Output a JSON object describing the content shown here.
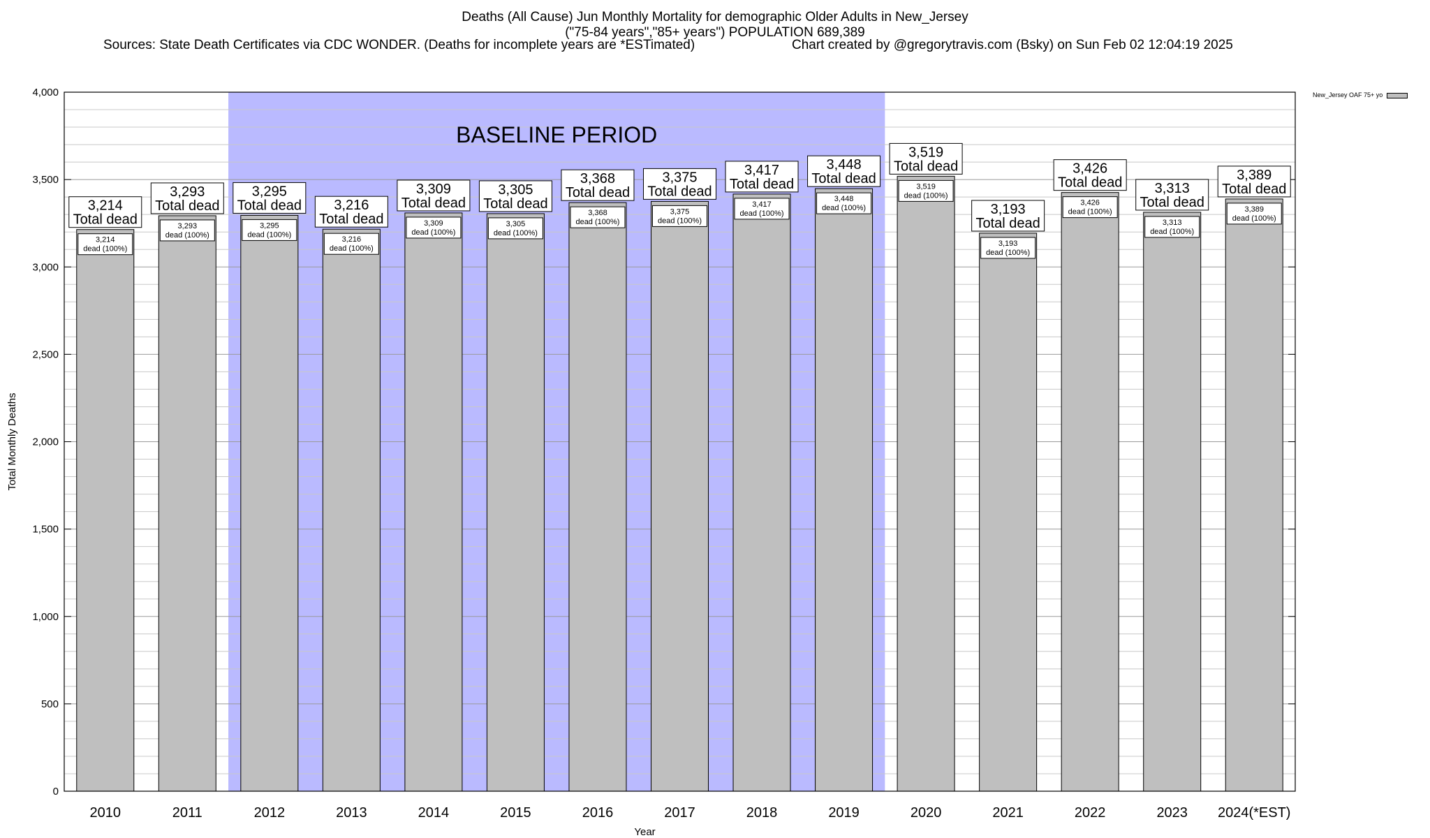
{
  "header": {
    "title_line1": "Deaths (All Cause) Jun Monthly Mortality for demographic Older Adults in New_Jersey",
    "title_line2": "(\"75-84 years\",\"85+ years\") POPULATION 689,389",
    "sources": "Sources: State Death Certificates via CDC WONDER. (Deaths for incomplete years are *ESTimated)",
    "credit": "Chart created by @gregorytravis.com (Bsky) on Sun Feb 02 12:04:19 2025"
  },
  "legend": {
    "label": "New_Jersey OAF 75+ yo"
  },
  "chart_data": {
    "type": "bar",
    "title": "Deaths (All Cause) Jun Monthly Mortality for demographic Older Adults in New_Jersey",
    "xlabel": "Year",
    "ylabel": "Total Monthly Deaths",
    "ylim": [
      0,
      4000
    ],
    "y_ticks": [
      0,
      500,
      1000,
      1500,
      2000,
      2500,
      3000,
      3500,
      4000
    ],
    "y_tick_labels": [
      "0",
      "500",
      "1,000",
      "1,500",
      "2,000",
      "2,500",
      "3,000",
      "3,500",
      "4,000"
    ],
    "grid": true,
    "legend_position": "top-right",
    "categories": [
      "2010",
      "2011",
      "2012",
      "2013",
      "2014",
      "2015",
      "2016",
      "2017",
      "2018",
      "2019",
      "2020",
      "2021",
      "2022",
      "2023",
      "2024(*EST)"
    ],
    "series": [
      {
        "name": "New_Jersey OAF 75+ yo",
        "values": [
          3214,
          3293,
          3295,
          3216,
          3309,
          3305,
          3368,
          3375,
          3417,
          3448,
          3519,
          3193,
          3426,
          3313,
          3389
        ]
      }
    ],
    "value_labels": [
      "3,214",
      "3,293",
      "3,295",
      "3,216",
      "3,309",
      "3,305",
      "3,368",
      "3,375",
      "3,417",
      "3,448",
      "3,519",
      "3,193",
      "3,426",
      "3,313",
      "3,389"
    ],
    "total_label_suffix": "Total dead",
    "inner_label_suffix": "dead (100%)",
    "baseline": {
      "label": "BASELINE PERIOD",
      "start": "2012",
      "end": "2019",
      "color": "#babaff"
    },
    "bar_color": "#bfbfbf"
  }
}
